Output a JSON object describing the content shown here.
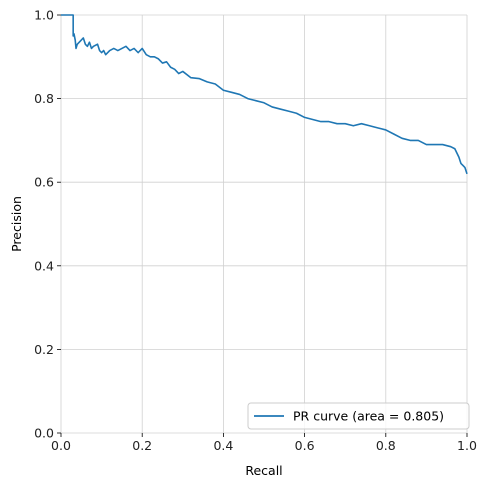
{
  "chart_data": {
    "type": "line",
    "title": "",
    "xlabel": "Recall",
    "ylabel": "Precision",
    "xlim": [
      0.0,
      1.0
    ],
    "ylim": [
      0.0,
      1.0
    ],
    "xticks": [
      "0.0",
      "0.2",
      "0.4",
      "0.6",
      "0.8",
      "1.0"
    ],
    "yticks": [
      "0.0",
      "0.2",
      "0.4",
      "0.6",
      "0.8",
      "1.0"
    ],
    "grid": true,
    "legend": "lower-right",
    "series": [
      {
        "name": "PR curve (area = 0.805)",
        "color": "#1f77b4",
        "x": [
          0.0,
          0.03,
          0.03,
          0.032,
          0.035,
          0.037,
          0.04,
          0.055,
          0.06,
          0.065,
          0.07,
          0.075,
          0.08,
          0.09,
          0.095,
          0.1,
          0.105,
          0.11,
          0.12,
          0.13,
          0.14,
          0.15,
          0.16,
          0.17,
          0.18,
          0.19,
          0.2,
          0.21,
          0.22,
          0.23,
          0.24,
          0.25,
          0.26,
          0.27,
          0.28,
          0.29,
          0.3,
          0.32,
          0.34,
          0.36,
          0.38,
          0.4,
          0.42,
          0.44,
          0.46,
          0.48,
          0.5,
          0.52,
          0.54,
          0.56,
          0.58,
          0.6,
          0.62,
          0.64,
          0.66,
          0.68,
          0.7,
          0.72,
          0.74,
          0.76,
          0.78,
          0.8,
          0.82,
          0.84,
          0.86,
          0.88,
          0.9,
          0.92,
          0.94,
          0.96,
          0.97,
          0.98,
          0.985,
          0.99,
          0.995,
          1.0
        ],
        "y": [
          1.0,
          1.0,
          0.95,
          0.955,
          0.94,
          0.92,
          0.93,
          0.945,
          0.93,
          0.925,
          0.935,
          0.92,
          0.925,
          0.93,
          0.915,
          0.91,
          0.915,
          0.905,
          0.915,
          0.92,
          0.915,
          0.92,
          0.925,
          0.915,
          0.92,
          0.91,
          0.92,
          0.905,
          0.9,
          0.9,
          0.895,
          0.885,
          0.888,
          0.875,
          0.87,
          0.86,
          0.865,
          0.85,
          0.848,
          0.84,
          0.835,
          0.82,
          0.815,
          0.81,
          0.8,
          0.795,
          0.79,
          0.78,
          0.775,
          0.77,
          0.765,
          0.755,
          0.75,
          0.745,
          0.745,
          0.74,
          0.74,
          0.735,
          0.74,
          0.735,
          0.73,
          0.725,
          0.715,
          0.705,
          0.7,
          0.7,
          0.69,
          0.69,
          0.69,
          0.685,
          0.68,
          0.66,
          0.645,
          0.64,
          0.635,
          0.62
        ]
      }
    ]
  }
}
